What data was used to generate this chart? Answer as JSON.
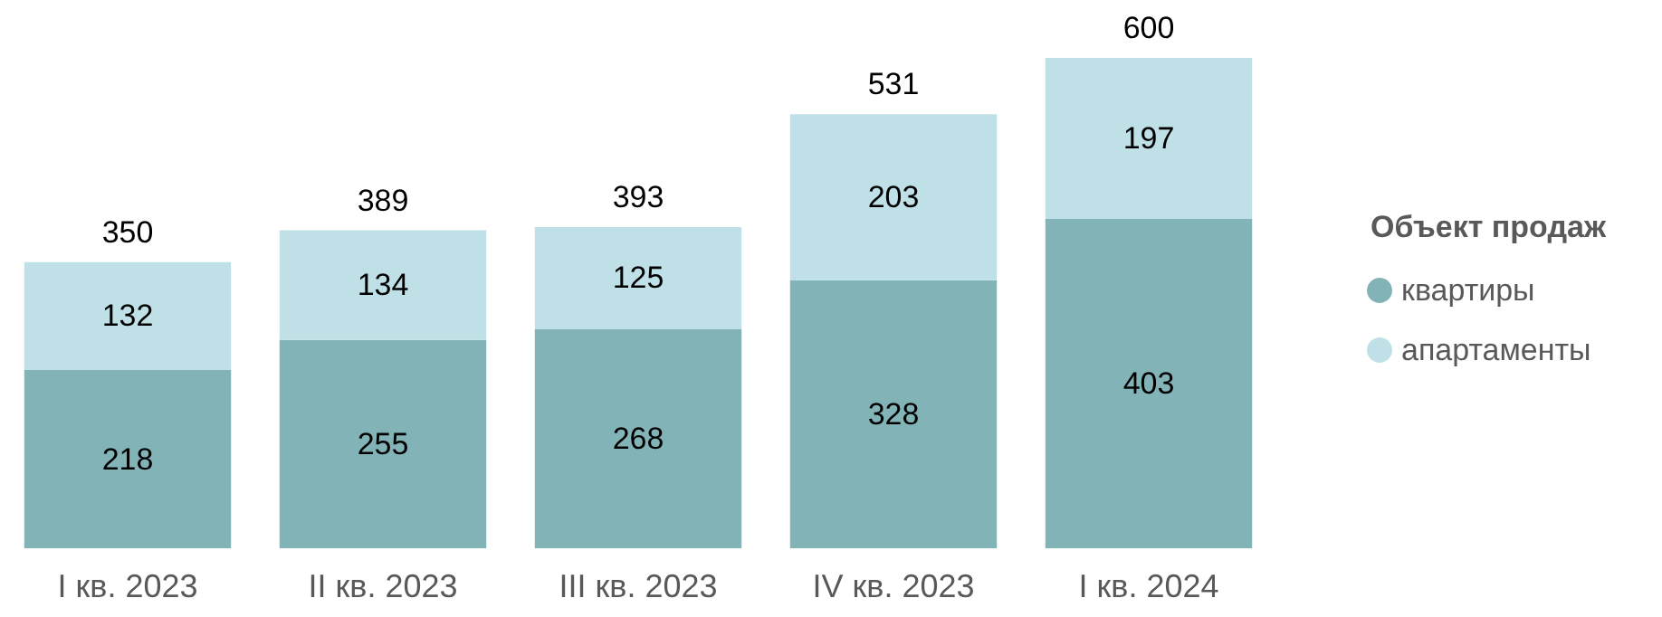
{
  "chart_data": {
    "type": "bar",
    "stacked": true,
    "data_labels": true,
    "legend": "right",
    "legend_title": "Объект продаж",
    "categories": [
      "I кв. 2023",
      "II кв. 2023",
      "III кв. 2023",
      "IV кв. 2023",
      "I кв. 2024"
    ],
    "series": [
      {
        "name": "квартиры",
        "color": "#82b3b7",
        "values": [
          218,
          255,
          268,
          328,
          403
        ]
      },
      {
        "name": "апартаменты",
        "color": "#bfe0e6",
        "values": [
          132,
          134,
          125,
          203,
          197
        ]
      }
    ],
    "totals": [
      "350",
      "389",
      "393",
      "531",
      "600"
    ]
  }
}
